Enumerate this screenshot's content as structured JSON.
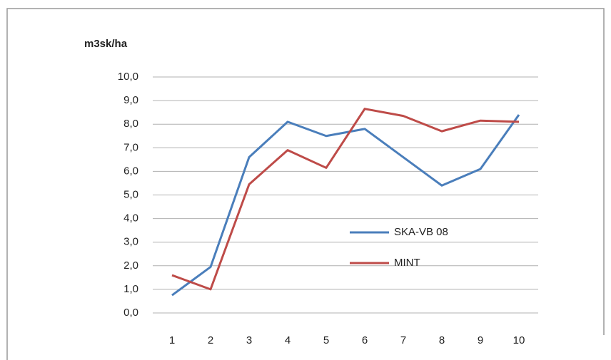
{
  "chart_data": {
    "type": "line",
    "y_label": "m3sk/ha",
    "categories": [
      "1",
      "2",
      "3",
      "4",
      "5",
      "6",
      "7",
      "8",
      "9",
      "10"
    ],
    "series": [
      {
        "name": "SKA-VB 08",
        "color": "#4a7ebb",
        "values": [
          0.75,
          1.95,
          6.6,
          8.1,
          7.5,
          7.8,
          6.6,
          5.4,
          6.1,
          8.4
        ]
      },
      {
        "name": "MINT",
        "color": "#be4b48",
        "values": [
          1.6,
          1.0,
          5.45,
          6.9,
          6.15,
          8.65,
          8.35,
          7.7,
          8.15,
          8.1
        ]
      }
    ],
    "ylim": [
      0,
      10
    ],
    "yticks": [
      {
        "value": 0,
        "label": "0,0"
      },
      {
        "value": 1,
        "label": "1,0"
      },
      {
        "value": 2,
        "label": "2,0"
      },
      {
        "value": 3,
        "label": "3,0"
      },
      {
        "value": 4,
        "label": "4,0"
      },
      {
        "value": 5,
        "label": "5,0"
      },
      {
        "value": 6,
        "label": "6,0"
      },
      {
        "value": 7,
        "label": "7,0"
      },
      {
        "value": 8,
        "label": "8,0"
      },
      {
        "value": 9,
        "label": "9,0"
      },
      {
        "value": 10,
        "label": "10,0"
      }
    ],
    "grid": true
  }
}
